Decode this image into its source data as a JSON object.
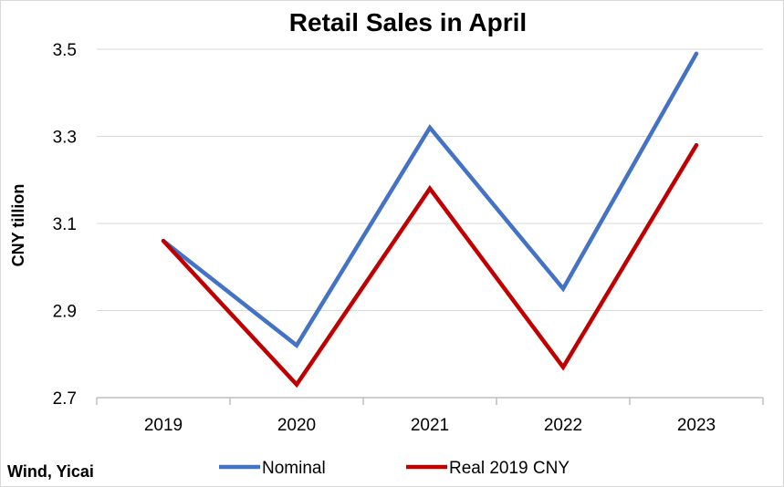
{
  "chart_data": {
    "type": "line",
    "title": "Retail Sales in April",
    "xlabel": "",
    "ylabel": "CNY tillion",
    "categories": [
      "2019",
      "2020",
      "2021",
      "2022",
      "2023"
    ],
    "ylim": [
      2.7,
      3.5
    ],
    "yticks": [
      "2.7",
      "2.9",
      "3.1",
      "3.3",
      "3.5"
    ],
    "grid": true,
    "legend_position": "bottom",
    "series": [
      {
        "name": "Nominal",
        "color": "#4472c4",
        "values": [
          3.06,
          2.82,
          3.32,
          2.95,
          3.49
        ]
      },
      {
        "name": "Real 2019 CNY",
        "color": "#c00000",
        "values": [
          3.06,
          2.73,
          3.18,
          2.77,
          3.28
        ]
      }
    ]
  },
  "source": "Wind, Yicai"
}
